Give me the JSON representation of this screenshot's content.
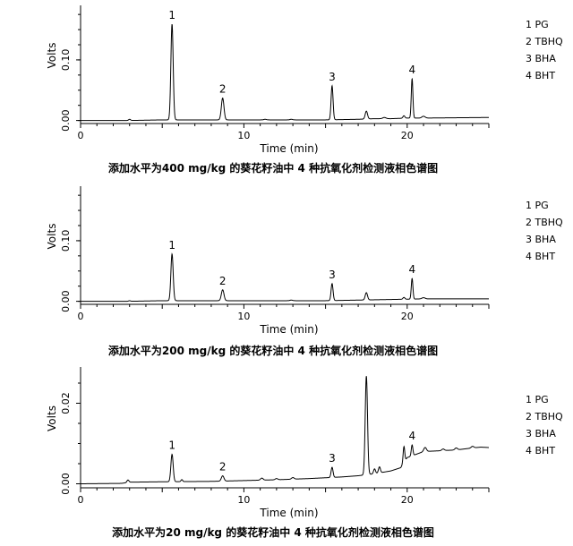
{
  "chart_data": [
    {
      "type": "line",
      "caption": "添加水平为400 mg/kg 的葵花籽油中 4 种抗氧化剂检测液相色谱图",
      "xlabel": "Time (min)",
      "ylabel": "Volts",
      "xlim": [
        0,
        25
      ],
      "ylim": [
        -0.005,
        0.19
      ],
      "xticks": [
        0,
        10,
        20
      ],
      "xtick_labels": [
        "0",
        "10",
        "20"
      ],
      "yticks": [
        0.0,
        0.1
      ],
      "ytick_labels": [
        "0.00",
        "0.10"
      ],
      "legend": [
        "1 PG",
        "2 TBHQ",
        "3 BHA",
        "4 BHT"
      ],
      "legend_position": "right",
      "baseline": [
        [
          0,
          0
        ],
        [
          3,
          0
        ],
        [
          5,
          0.001
        ],
        [
          10,
          0.001
        ],
        [
          15,
          0.001
        ],
        [
          17,
          0.002
        ],
        [
          18,
          0.003
        ],
        [
          19,
          0.003
        ],
        [
          20,
          0.004
        ],
        [
          21,
          0.004
        ],
        [
          25,
          0.005
        ]
      ],
      "peaks": [
        {
          "x": 3.0,
          "height": 0.002,
          "width": 0.06,
          "label": ""
        },
        {
          "x": 5.6,
          "height": 0.158,
          "width": 0.07,
          "label": "1"
        },
        {
          "x": 8.7,
          "height": 0.036,
          "width": 0.08,
          "label": "2"
        },
        {
          "x": 11.3,
          "height": 0.001,
          "width": 0.08,
          "label": ""
        },
        {
          "x": 12.9,
          "height": 0.001,
          "width": 0.08,
          "label": ""
        },
        {
          "x": 15.4,
          "height": 0.056,
          "width": 0.06,
          "label": "3"
        },
        {
          "x": 17.5,
          "height": 0.013,
          "width": 0.07,
          "label": ""
        },
        {
          "x": 18.6,
          "height": 0.002,
          "width": 0.1,
          "label": ""
        },
        {
          "x": 19.8,
          "height": 0.004,
          "width": 0.06,
          "label": ""
        },
        {
          "x": 20.3,
          "height": 0.065,
          "width": 0.05,
          "label": "4"
        },
        {
          "x": 21.0,
          "height": 0.003,
          "width": 0.1,
          "label": ""
        }
      ]
    },
    {
      "type": "line",
      "caption": "添加水平为200 mg/kg 的葵花籽油中 4 种抗氧化剂检测液相色谱图",
      "xlabel": "Time (min)",
      "ylabel": "Volts",
      "xlim": [
        0,
        25
      ],
      "ylim": [
        -0.005,
        0.19
      ],
      "xticks": [
        0,
        10,
        20
      ],
      "xtick_labels": [
        "0",
        "10",
        "20"
      ],
      "yticks": [
        0.0,
        0.1
      ],
      "ytick_labels": [
        "0.00",
        "0.10"
      ],
      "legend": [
        "1 PG",
        "2 TBHQ",
        "3 BHA",
        "4 BHT"
      ],
      "legend_position": "right",
      "baseline": [
        [
          0,
          0
        ],
        [
          3,
          0
        ],
        [
          5,
          0.001
        ],
        [
          10,
          0.001
        ],
        [
          15,
          0.001
        ],
        [
          17,
          0.002
        ],
        [
          19,
          0.003
        ],
        [
          21,
          0.004
        ],
        [
          25,
          0.004
        ]
      ],
      "peaks": [
        {
          "x": 3.0,
          "height": 0.001,
          "width": 0.06,
          "label": ""
        },
        {
          "x": 5.6,
          "height": 0.077,
          "width": 0.07,
          "label": "1"
        },
        {
          "x": 8.7,
          "height": 0.018,
          "width": 0.08,
          "label": "2"
        },
        {
          "x": 12.9,
          "height": 0.001,
          "width": 0.08,
          "label": ""
        },
        {
          "x": 15.4,
          "height": 0.028,
          "width": 0.06,
          "label": "3"
        },
        {
          "x": 17.5,
          "height": 0.012,
          "width": 0.07,
          "label": ""
        },
        {
          "x": 19.8,
          "height": 0.003,
          "width": 0.06,
          "label": ""
        },
        {
          "x": 20.3,
          "height": 0.034,
          "width": 0.05,
          "label": "4"
        },
        {
          "x": 21.0,
          "height": 0.002,
          "width": 0.1,
          "label": ""
        }
      ]
    },
    {
      "type": "line",
      "caption": "添加水平为20 mg/kg 的葵花籽油中 4 种抗氧化剂检测液相色谱图",
      "xlabel": "Time (min)",
      "ylabel": "Volts",
      "xlim": [
        0,
        25
      ],
      "ylim": [
        -0.001,
        0.029
      ],
      "xticks": [
        0,
        10,
        20
      ],
      "xtick_labels": [
        "0",
        "10",
        "20"
      ],
      "yticks": [
        0.0,
        0.02
      ],
      "ytick_labels": [
        "0.00",
        "0.02"
      ],
      "legend": [
        "1 PG",
        "2 TBHQ",
        "3 BHA",
        "4 BHT"
      ],
      "legend_position": "right",
      "baseline": [
        [
          0,
          0
        ],
        [
          2.5,
          0.0001
        ],
        [
          3.0,
          0.0004
        ],
        [
          5,
          0.0005
        ],
        [
          8,
          0.0006
        ],
        [
          10,
          0.0008
        ],
        [
          12,
          0.001
        ],
        [
          14,
          0.0013
        ],
        [
          15,
          0.0015
        ],
        [
          16,
          0.0017
        ],
        [
          17,
          0.002
        ],
        [
          18,
          0.0025
        ],
        [
          19,
          0.0032
        ],
        [
          19.6,
          0.004
        ],
        [
          20,
          0.0065
        ],
        [
          21,
          0.008
        ],
        [
          22,
          0.0082
        ],
        [
          23,
          0.0084
        ],
        [
          24,
          0.0089
        ],
        [
          24.5,
          0.0091
        ],
        [
          25,
          0.009
        ]
      ],
      "peaks": [
        {
          "x": 2.9,
          "height": 0.0006,
          "width": 0.06,
          "label": ""
        },
        {
          "x": 5.6,
          "height": 0.0068,
          "width": 0.07,
          "label": "1"
        },
        {
          "x": 6.2,
          "height": 0.0005,
          "width": 0.05,
          "label": ""
        },
        {
          "x": 8.7,
          "height": 0.0013,
          "width": 0.08,
          "label": "2"
        },
        {
          "x": 11.1,
          "height": 0.0005,
          "width": 0.08,
          "label": ""
        },
        {
          "x": 12.0,
          "height": 0.0003,
          "width": 0.08,
          "label": ""
        },
        {
          "x": 13.0,
          "height": 0.0004,
          "width": 0.08,
          "label": ""
        },
        {
          "x": 15.4,
          "height": 0.0025,
          "width": 0.06,
          "label": "3"
        },
        {
          "x": 17.5,
          "height": 0.0245,
          "width": 0.07,
          "label": ""
        },
        {
          "x": 18.0,
          "height": 0.0012,
          "width": 0.06,
          "label": ""
        },
        {
          "x": 18.3,
          "height": 0.0015,
          "width": 0.06,
          "label": ""
        },
        {
          "x": 19.8,
          "height": 0.004,
          "width": 0.05,
          "label": ""
        },
        {
          "x": 20.3,
          "height": 0.0027,
          "width": 0.05,
          "label": "4"
        },
        {
          "x": 21.1,
          "height": 0.001,
          "width": 0.08,
          "label": ""
        },
        {
          "x": 22.2,
          "height": 0.0004,
          "width": 0.08,
          "label": ""
        },
        {
          "x": 23.0,
          "height": 0.0005,
          "width": 0.08,
          "label": ""
        },
        {
          "x": 24.0,
          "height": 0.0004,
          "width": 0.08,
          "label": ""
        }
      ]
    }
  ]
}
